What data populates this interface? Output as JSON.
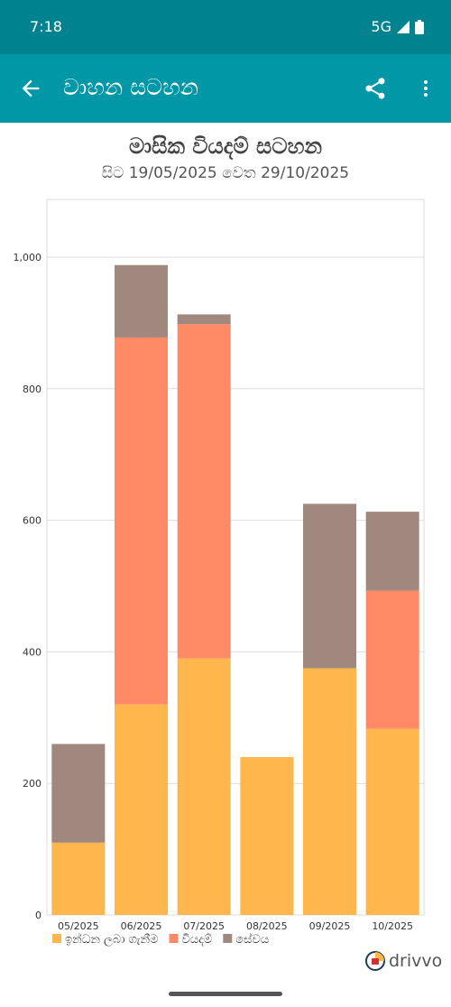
{
  "status_bar": {
    "time": "7:18",
    "network": "5G"
  },
  "app_bar": {
    "title": "වාහන සටහන"
  },
  "chart_data": {
    "type": "bar",
    "stacked": true,
    "title": "මාසික වියදම් සටහන",
    "subtitle": "සිට 19/05/2025 වෙත 29/10/2025",
    "categories": [
      "05/2025",
      "06/2025",
      "07/2025",
      "08/2025",
      "09/2025",
      "10/2025"
    ],
    "series": [
      {
        "name": "ඉන්ධන ලබා ගැනීම",
        "color": "#ffb74d",
        "values": [
          110,
          320,
          390,
          240,
          375,
          283
        ]
      },
      {
        "name": "වියදම්",
        "color": "#ff8a65",
        "values": [
          0,
          558,
          508,
          0,
          0,
          210
        ]
      },
      {
        "name": "සේවය",
        "color": "#a1887f",
        "values": [
          150,
          110,
          15,
          0,
          250,
          120
        ]
      }
    ],
    "ylim": [
      0,
      1000
    ],
    "yticks": [
      0,
      200,
      400,
      600,
      800,
      "1,000"
    ],
    "grid": true,
    "legend": "bottom-left"
  },
  "branding": {
    "logo_text": "drivvo"
  }
}
